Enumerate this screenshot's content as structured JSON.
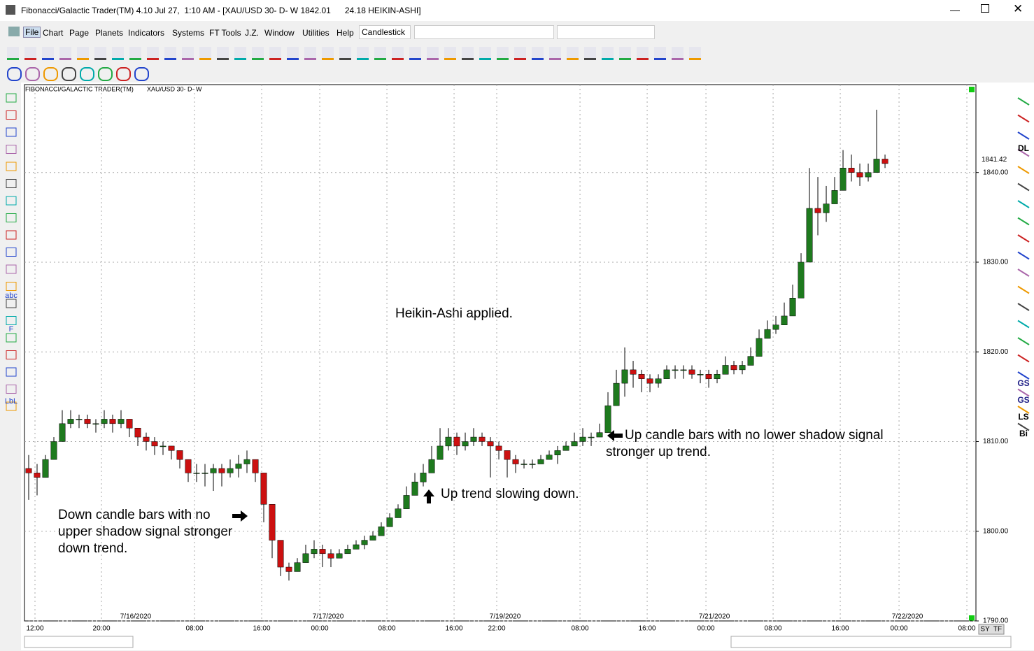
{
  "window": {
    "title": "Fibonacci/Galactic Trader(TM) 4.10 Jul 27,  1:10 AM - [XAU/USD 30- D- W 1842.01      24.18 HEIKIN-ASHI]",
    "menu": [
      "File",
      "Chart",
      "Page",
      "Planets",
      "Indicators",
      "Systems",
      "FT Tools",
      "J.Z.",
      "Window",
      "Utilities",
      "Help"
    ],
    "chart_style": "Candlestick",
    "left_tools": [
      "abc",
      "F",
      "LbL"
    ],
    "right_tools": [
      "DL",
      "GS",
      "GS",
      "LS",
      "Bi"
    ],
    "corner": [
      "SY",
      "TF"
    ]
  },
  "chart_data": {
    "type": "candlestick",
    "header": [
      "FIBONACCI/GALACTIC TRADER(TM)",
      "XAU/USD 30- D- W"
    ],
    "annotations": [
      "Heikin-Ashi applied.",
      "Up candle bars with no lower shadow signal",
      "stronger up trend.",
      "Up trend slowing down.",
      "Down candle bars with no",
      "upper shadow signal stronger",
      "down trend."
    ],
    "last_price": 1841.42,
    "up_color": "#1e7a1e",
    "down_color": "#cc1010",
    "ylim": [
      1790,
      1849.8
    ],
    "yticks": [
      {
        "value": 1790,
        "label": "1790.00"
      },
      {
        "value": 1800,
        "label": "1800.00"
      },
      {
        "value": 1810,
        "label": "1810.00"
      },
      {
        "value": 1820,
        "label": "1820.00"
      },
      {
        "value": 1830,
        "label": "1830.00"
      },
      {
        "value": 1840,
        "label": "1840.00"
      }
    ],
    "xlim": [
      0,
      113.33
    ],
    "xticks": [
      {
        "value": 1.25,
        "label": "12:00"
      },
      {
        "value": 9.17,
        "label": "20:00"
      },
      {
        "value": 20.25,
        "label": "08:00"
      },
      {
        "value": 28.25,
        "label": "16:00"
      },
      {
        "value": 35.17,
        "label": "00:00"
      },
      {
        "value": 43.17,
        "label": "08:00"
      },
      {
        "value": 51.17,
        "label": "16:00"
      },
      {
        "value": 56.25,
        "label": "22:00"
      },
      {
        "value": 66.17,
        "label": "08:00"
      },
      {
        "value": 74.17,
        "label": "16:00"
      },
      {
        "value": 81.17,
        "label": "00:00"
      },
      {
        "value": 89.17,
        "label": "08:00"
      },
      {
        "value": 97.17,
        "label": "16:00"
      },
      {
        "value": 104.17,
        "label": "00:00"
      },
      {
        "value": 112.25,
        "label": "08:00"
      }
    ],
    "date_markers": [
      {
        "value": 13.25,
        "label": "7/16/2020"
      },
      {
        "value": 36.17,
        "label": "7/17/2020"
      },
      {
        "value": 57.25,
        "label": "7/19/2020"
      },
      {
        "value": 82.17,
        "label": "7/21/2020"
      },
      {
        "value": 105.17,
        "label": "7/22/2020"
      }
    ],
    "grid": true,
    "candles": [
      [
        1807,
        1808.5,
        1803.5,
        1806.5
      ],
      [
        1806.5,
        1807.5,
        1804,
        1806
      ],
      [
        1806,
        1808.5,
        1806,
        1808
      ],
      [
        1808,
        1810.5,
        1808,
        1810
      ],
      [
        1810,
        1813.5,
        1810,
        1812
      ],
      [
        1812,
        1813.5,
        1811.5,
        1812.5
      ],
      [
        1812.5,
        1813,
        1811.5,
        1812.5
      ],
      [
        1812.5,
        1813,
        1811.5,
        1812
      ],
      [
        1812,
        1812.5,
        1811,
        1812
      ],
      [
        1812,
        1813.5,
        1811.5,
        1812.5
      ],
      [
        1812.5,
        1813,
        1811,
        1812
      ],
      [
        1812,
        1813.5,
        1811.5,
        1812.5
      ],
      [
        1812.5,
        1812.5,
        1810.5,
        1811.5
      ],
      [
        1811.5,
        1811.5,
        1809.5,
        1810.5
      ],
      [
        1810.5,
        1811,
        1809,
        1810
      ],
      [
        1810,
        1810.5,
        1808.5,
        1809.5
      ],
      [
        1809.5,
        1810,
        1808.5,
        1809.5
      ],
      [
        1809.5,
        1809.5,
        1808,
        1809
      ],
      [
        1809,
        1809,
        1807,
        1808
      ],
      [
        1808,
        1808,
        1805.5,
        1806.5
      ],
      [
        1806.5,
        1807.5,
        1805.5,
        1806.5
      ],
      [
        1806.5,
        1807.5,
        1805,
        1806.5
      ],
      [
        1806.5,
        1807.5,
        1804.5,
        1807
      ],
      [
        1807,
        1807.5,
        1805,
        1806.5
      ],
      [
        1806.5,
        1808,
        1806,
        1807
      ],
      [
        1807,
        1808.5,
        1806,
        1807.5
      ],
      [
        1807.5,
        1809,
        1806.5,
        1808
      ],
      [
        1808,
        1808,
        1805.5,
        1806.5
      ],
      [
        1806.5,
        1806.5,
        1801,
        1803
      ],
      [
        1803,
        1803,
        1797,
        1799
      ],
      [
        1799,
        1799,
        1795,
        1796
      ],
      [
        1796,
        1796.5,
        1794.5,
        1795.5
      ],
      [
        1795.5,
        1797,
        1795.5,
        1796.5
      ],
      [
        1796.5,
        1798.5,
        1796.5,
        1797.5
      ],
      [
        1797.5,
        1799,
        1797,
        1798
      ],
      [
        1798,
        1798.5,
        1796,
        1797.5
      ],
      [
        1797.5,
        1798,
        1796,
        1797
      ],
      [
        1797,
        1798,
        1797,
        1797.5
      ],
      [
        1797.5,
        1798.5,
        1797.5,
        1798
      ],
      [
        1798,
        1799,
        1798,
        1798.5
      ],
      [
        1798.5,
        1799.5,
        1798,
        1799
      ],
      [
        1799,
        1800,
        1799,
        1799.5
      ],
      [
        1799.5,
        1801,
        1799.5,
        1800.5
      ],
      [
        1800.5,
        1802,
        1800.5,
        1801.5
      ],
      [
        1801.5,
        1803,
        1801.5,
        1802.5
      ],
      [
        1802.5,
        1805,
        1802.5,
        1804
      ],
      [
        1804,
        1806.5,
        1804,
        1805.5
      ],
      [
        1805.5,
        1807.5,
        1805,
        1806.5
      ],
      [
        1806.5,
        1809.5,
        1806.5,
        1808
      ],
      [
        1808,
        1811.5,
        1808,
        1809.5
      ],
      [
        1809.5,
        1811.5,
        1809,
        1810.5
      ],
      [
        1810.5,
        1811,
        1808.5,
        1809.5
      ],
      [
        1809.5,
        1811,
        1809,
        1810
      ],
      [
        1810,
        1811.5,
        1809.5,
        1810.5
      ],
      [
        1810.5,
        1811,
        1809.5,
        1810
      ],
      [
        1810,
        1810.5,
        1806,
        1809.5
      ],
      [
        1809.5,
        1810,
        1808,
        1809
      ],
      [
        1809,
        1809,
        1806,
        1808
      ],
      [
        1808,
        1808.5,
        1806.5,
        1807.5
      ],
      [
        1807.5,
        1808,
        1807,
        1807.5
      ],
      [
        1807.5,
        1808,
        1807,
        1807.5
      ],
      [
        1807.5,
        1808.5,
        1807.5,
        1808
      ],
      [
        1808,
        1809,
        1808,
        1808.5
      ],
      [
        1808.5,
        1809.5,
        1807.5,
        1809
      ],
      [
        1809,
        1810,
        1809,
        1809.5
      ],
      [
        1809.5,
        1811,
        1809.5,
        1810
      ],
      [
        1810,
        1811.5,
        1809.5,
        1810.5
      ],
      [
        1810.5,
        1811,
        1809.5,
        1810.5
      ],
      [
        1810.5,
        1812,
        1810.5,
        1811
      ],
      [
        1811,
        1815.5,
        1811,
        1814
      ],
      [
        1814,
        1818,
        1814,
        1816.5
      ],
      [
        1816.5,
        1820.5,
        1815,
        1818
      ],
      [
        1818,
        1819,
        1816,
        1817.5
      ],
      [
        1817.5,
        1818,
        1815.5,
        1817
      ],
      [
        1817,
        1817.5,
        1815.5,
        1816.5
      ],
      [
        1816.5,
        1817.5,
        1816,
        1817
      ],
      [
        1817,
        1818.5,
        1817,
        1818
      ],
      [
        1818,
        1818.5,
        1817,
        1818
      ],
      [
        1818,
        1818.5,
        1817,
        1818
      ],
      [
        1818,
        1818.5,
        1817,
        1817.5
      ],
      [
        1817.5,
        1818,
        1816.5,
        1817.5
      ],
      [
        1817.5,
        1818,
        1816,
        1817
      ],
      [
        1817,
        1818,
        1816.5,
        1817.5
      ],
      [
        1817.5,
        1819.5,
        1817.5,
        1818.5
      ],
      [
        1818.5,
        1819,
        1817.5,
        1818
      ],
      [
        1818,
        1819,
        1817.5,
        1818.5
      ],
      [
        1818.5,
        1820.5,
        1818.5,
        1819.5
      ],
      [
        1819.5,
        1822.5,
        1819.5,
        1821.5
      ],
      [
        1821.5,
        1823.5,
        1821.5,
        1822.5
      ],
      [
        1822.5,
        1824,
        1822,
        1823
      ],
      [
        1823,
        1825.5,
        1823,
        1824
      ],
      [
        1824,
        1827.5,
        1824,
        1826
      ],
      [
        1826,
        1831,
        1826,
        1830
      ],
      [
        1830,
        1840.5,
        1830,
        1836
      ],
      [
        1836,
        1839.5,
        1833,
        1835.5
      ],
      [
        1835.5,
        1838.5,
        1834.5,
        1836.5
      ],
      [
        1836.5,
        1839.5,
        1836.5,
        1838
      ],
      [
        1838,
        1842.5,
        1838,
        1840.5
      ],
      [
        1840.5,
        1842,
        1839,
        1840
      ],
      [
        1840,
        1841,
        1838.5,
        1839.5
      ],
      [
        1839.5,
        1841,
        1839,
        1840
      ],
      [
        1840,
        1847,
        1840,
        1841.5
      ],
      [
        1841.5,
        1842,
        1840.5,
        1841
      ]
    ]
  }
}
